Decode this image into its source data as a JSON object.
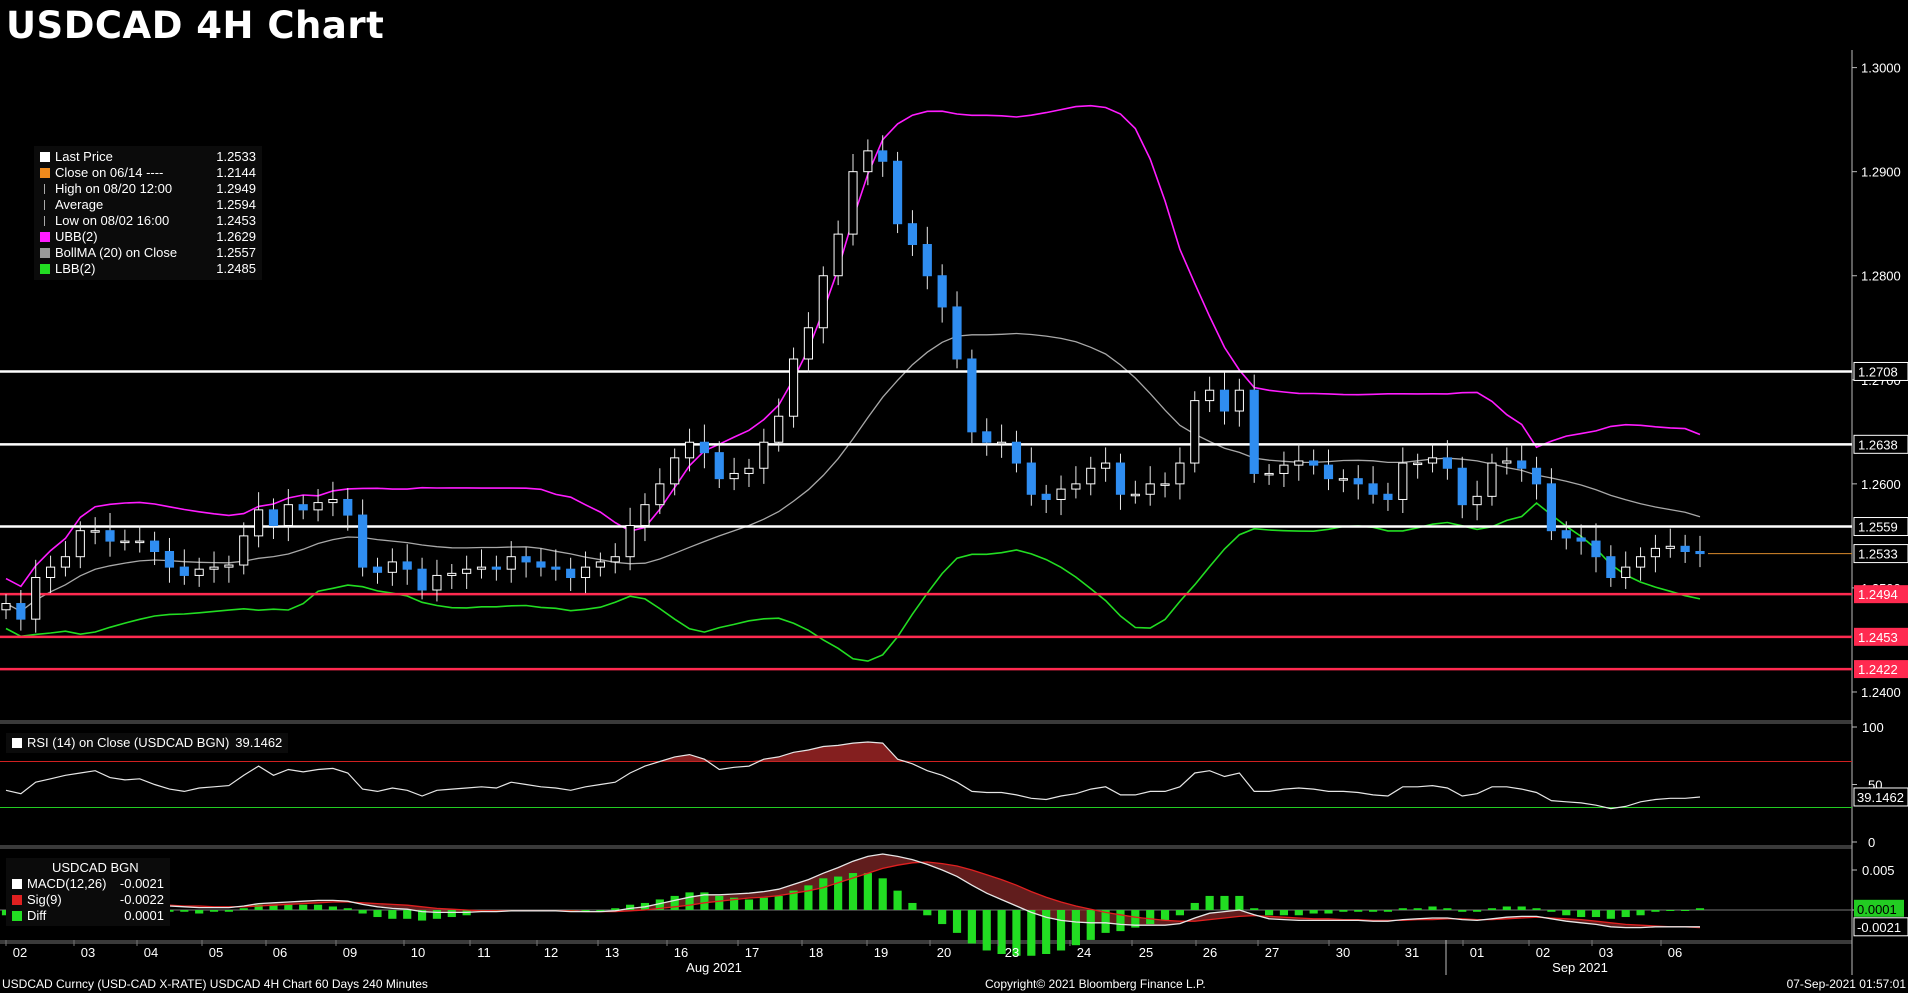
{
  "title": "USDCAD 4H Chart",
  "colors": {
    "candle_up": "#ffffff",
    "candle_down": "#2f8df0",
    "ubb": "#ff1cff",
    "bollma": "#a8a8a8",
    "lbb": "#22dd22",
    "resistance": "#ffffff",
    "support": "#ff2a50",
    "last_price_line": "#d98a2b",
    "rsi": "#e6e6e6",
    "macd": "#e6e6e6",
    "signal": "#e02020",
    "diff": "#22dd22"
  },
  "legend": [
    {
      "icon": "last-price-swatch",
      "color": "#ffffff",
      "label": "Last Price",
      "value": "1.2533"
    },
    {
      "icon": "close-swatch",
      "color": "#f08a1c",
      "label": "Close on 06/14 ----",
      "value": "1.2144"
    },
    {
      "icon": "high-marker",
      "color": "",
      "label": "High on 08/20 12:00",
      "value": "1.2949"
    },
    {
      "icon": "average-marker",
      "color": "",
      "label": "Average",
      "value": "1.2594"
    },
    {
      "icon": "low-marker",
      "color": "",
      "label": "Low on 08/02 16:00",
      "value": "1.2453"
    },
    {
      "icon": "ubb-swatch",
      "color": "#ff1cff",
      "label": "UBB(2)",
      "value": "1.2629"
    },
    {
      "icon": "bollma-swatch",
      "color": "#9a9a9a",
      "label": "BollMA (20)  on Close",
      "value": "1.2557"
    },
    {
      "icon": "lbb-swatch",
      "color": "#22dd22",
      "label": "LBB(2)",
      "value": "1.2485"
    }
  ],
  "rsi_legend": {
    "label": "RSI (14)  on Close (USDCAD BGN)",
    "value": "39.1462"
  },
  "macd_legend": {
    "title": "USDCAD BGN",
    "rows": [
      {
        "color": "#ffffff",
        "label": "MACD(12,26)",
        "value": "-0.0021"
      },
      {
        "color": "#e02020",
        "label": "Sig(9)",
        "value": "-0.0022"
      },
      {
        "color": "#22dd22",
        "label": "Diff",
        "value": "0.0001"
      }
    ]
  },
  "footer": {
    "left": "USDCAD Curncy (USD-CAD X-RATE) USDCAD 4H Chart 60 Days 240 Minutes",
    "center": "Copyright© 2021 Bloomberg Finance L.P.",
    "right": "07-Sep-2021 01:57:01"
  },
  "chart_data": [
    {
      "type": "candlestick",
      "title": "USDCAD 4H Chart",
      "x_ticks": [
        "02",
        "03",
        "04",
        "05",
        "06",
        "09",
        "10",
        "11",
        "12",
        "13",
        "16",
        "17",
        "18",
        "19",
        "20",
        "23",
        "24",
        "25",
        "26",
        "27",
        "30",
        "31",
        "01",
        "02",
        "03",
        "06"
      ],
      "x_month_labels": [
        "Aug 2021",
        "Sep 2021"
      ],
      "ylim": [
        1.2375,
        1.3015
      ],
      "y_ticks": [
        "1.2400",
        "1.2500",
        "1.2600",
        "1.2700",
        "1.2800",
        "1.2900",
        "1.3000"
      ],
      "horizontal_lines": [
        {
          "value": 1.2708,
          "label": "1.2708",
          "kind": "resistance"
        },
        {
          "value": 1.2638,
          "label": "1.2638",
          "kind": "resistance"
        },
        {
          "value": 1.2559,
          "label": "1.2559",
          "kind": "resistance"
        },
        {
          "value": 1.2494,
          "label": "1.2494",
          "kind": "support"
        },
        {
          "value": 1.2453,
          "label": "1.2453",
          "kind": "support"
        },
        {
          "value": 1.2422,
          "label": "1.2422",
          "kind": "support"
        }
      ],
      "last_price": {
        "value": 1.2533,
        "label": "1.2533"
      },
      "hidden_labels": [
        "1.2629",
        "1.2485"
      ],
      "close_series": [
        1.2485,
        1.247,
        1.251,
        1.252,
        1.253,
        1.2555,
        1.2555,
        1.2545,
        1.2545,
        1.2545,
        1.2535,
        1.252,
        1.2512,
        1.2518,
        1.252,
        1.2522,
        1.255,
        1.2575,
        1.256,
        1.258,
        1.2575,
        1.2582,
        1.2585,
        1.257,
        1.252,
        1.2515,
        1.2525,
        1.2518,
        1.2498,
        1.2512,
        1.2514,
        1.2518,
        1.252,
        1.2518,
        1.253,
        1.2525,
        1.252,
        1.2518,
        1.251,
        1.252,
        1.2525,
        1.253,
        1.256,
        1.258,
        1.26,
        1.2625,
        1.264,
        1.263,
        1.2605,
        1.261,
        1.2615,
        1.264,
        1.2665,
        1.272,
        1.275,
        1.28,
        1.284,
        1.29,
        1.292,
        1.291,
        1.285,
        1.283,
        1.28,
        1.277,
        1.272,
        1.265,
        1.264,
        1.264,
        1.262,
        1.259,
        1.2585,
        1.2595,
        1.26,
        1.2615,
        1.262,
        1.259,
        1.259,
        1.26,
        1.26,
        1.262,
        1.268,
        1.269,
        1.267,
        1.269,
        1.261,
        1.261,
        1.2618,
        1.2622,
        1.2618,
        1.2605,
        1.2605,
        1.26,
        1.259,
        1.2585,
        1.262,
        1.262,
        1.2625,
        1.2615,
        1.258,
        1.2588,
        1.262,
        1.2622,
        1.2615,
        1.26,
        1.2555,
        1.2548,
        1.2545,
        1.253,
        1.251,
        1.252,
        1.253,
        1.2538,
        1.254,
        1.2535,
        1.2533
      ],
      "rsi": {
        "value": 39.1462,
        "levels": [
          70,
          30
        ],
        "ylim": [
          0,
          100
        ],
        "y_ticks": [
          "0",
          "50",
          "100"
        ],
        "series": [
          45,
          42,
          52,
          55,
          58,
          60,
          62,
          56,
          54,
          55,
          50,
          46,
          44,
          47,
          48,
          49,
          58,
          66,
          58,
          63,
          61,
          63,
          64,
          60,
          46,
          44,
          47,
          45,
          40,
          45,
          46,
          47,
          48,
          47,
          52,
          50,
          48,
          47,
          45,
          48,
          50,
          52,
          60,
          66,
          70,
          74,
          76,
          72,
          63,
          65,
          66,
          72,
          74,
          78,
          80,
          83,
          84,
          86,
          87,
          86,
          72,
          68,
          62,
          58,
          52,
          44,
          43,
          43,
          41,
          38,
          37,
          40,
          42,
          46,
          48,
          41,
          41,
          44,
          44,
          48,
          60,
          62,
          57,
          60,
          44,
          44,
          46,
          47,
          46,
          44,
          44,
          43,
          41,
          40,
          48,
          48,
          49,
          47,
          40,
          42,
          48,
          48,
          46,
          43,
          36,
          35,
          34,
          32,
          29,
          31,
          35,
          37,
          38,
          38,
          39.1462
        ]
      },
      "macd": {
        "ylim": [
          -0.0035,
          0.0075
        ],
        "y_ticks": [
          "0",
          "0.005"
        ],
        "macd_value": "-0.0021",
        "diff_value": "0.0001",
        "macd_series": [
          -0.0002,
          -0.0004,
          -0.0002,
          0.0001,
          0.0004,
          0.0006,
          0.0008,
          0.0008,
          0.0008,
          0.0008,
          0.0007,
          0.0005,
          0.0004,
          0.0003,
          0.0003,
          0.0003,
          0.0005,
          0.0008,
          0.0009,
          0.001,
          0.0011,
          0.0012,
          0.0012,
          0.0011,
          0.0007,
          0.0004,
          0.0002,
          0.0001,
          -0.0002,
          -0.0003,
          -0.0003,
          -0.0003,
          -0.0002,
          -0.0002,
          -0.0001,
          -0.0001,
          -0.0001,
          -0.0001,
          -0.0002,
          -0.0002,
          -0.0002,
          -0.0001,
          0.0002,
          0.0004,
          0.0008,
          0.0012,
          0.0016,
          0.0019,
          0.0019,
          0.002,
          0.0021,
          0.0023,
          0.0026,
          0.0032,
          0.0038,
          0.0046,
          0.0053,
          0.0061,
          0.0067,
          0.007,
          0.0067,
          0.0063,
          0.0057,
          0.005,
          0.0042,
          0.0031,
          0.0021,
          0.0013,
          0.0005,
          -0.0003,
          -0.0009,
          -0.0013,
          -0.0015,
          -0.0016,
          -0.0016,
          -0.0018,
          -0.0019,
          -0.0019,
          -0.0019,
          -0.0017,
          -0.001,
          -0.0004,
          -0.0002,
          0.0,
          -0.0006,
          -0.0011,
          -0.0012,
          -0.0013,
          -0.0013,
          -0.0013,
          -0.0013,
          -0.0013,
          -0.0014,
          -0.0014,
          -0.0012,
          -0.0011,
          -0.001,
          -0.001,
          -0.0012,
          -0.0013,
          -0.0011,
          -0.0009,
          -0.0008,
          -0.0008,
          -0.0011,
          -0.0014,
          -0.0016,
          -0.0018,
          -0.0021,
          -0.0022,
          -0.0022,
          -0.0021,
          -0.0021,
          -0.0021,
          -0.0021
        ],
        "signal_series": [
          0.0001,
          -0.0001,
          -0.0001,
          0.0,
          0.0001,
          0.0002,
          0.0003,
          0.0004,
          0.0005,
          0.0006,
          0.0006,
          0.0006,
          0.0005,
          0.0005,
          0.0004,
          0.0004,
          0.0004,
          0.0005,
          0.0006,
          0.0007,
          0.0008,
          0.0009,
          0.001,
          0.001,
          0.0009,
          0.0008,
          0.0007,
          0.0006,
          0.0004,
          0.0002,
          0.0001,
          0.0,
          -0.0001,
          -0.0001,
          -0.0001,
          -0.0001,
          -0.0001,
          -0.0001,
          -0.0001,
          -0.0002,
          -0.0002,
          -0.0002,
          -0.0001,
          0.0,
          0.0002,
          0.0004,
          0.0006,
          0.0009,
          0.0011,
          0.0013,
          0.0015,
          0.0016,
          0.0018,
          0.0021,
          0.0024,
          0.0028,
          0.0034,
          0.004,
          0.0046,
          0.0052,
          0.0056,
          0.0059,
          0.006,
          0.0058,
          0.0055,
          0.005,
          0.0044,
          0.0038,
          0.0031,
          0.0023,
          0.0016,
          0.001,
          0.0005,
          0.0001,
          -0.0003,
          -0.0006,
          -0.0009,
          -0.0011,
          -0.0013,
          -0.0014,
          -0.0014,
          -0.0012,
          -0.001,
          -0.0008,
          -0.0007,
          -0.0008,
          -0.0009,
          -0.001,
          -0.0011,
          -0.0011,
          -0.0012,
          -0.0012,
          -0.0013,
          -0.0013,
          -0.0013,
          -0.0012,
          -0.0012,
          -0.0011,
          -0.0011,
          -0.0012,
          -0.0012,
          -0.0011,
          -0.001,
          -0.0009,
          -0.001,
          -0.0011,
          -0.0012,
          -0.0014,
          -0.0016,
          -0.0018,
          -0.0019,
          -0.002,
          -0.0021,
          -0.0021,
          -0.0022
        ]
      }
    }
  ]
}
